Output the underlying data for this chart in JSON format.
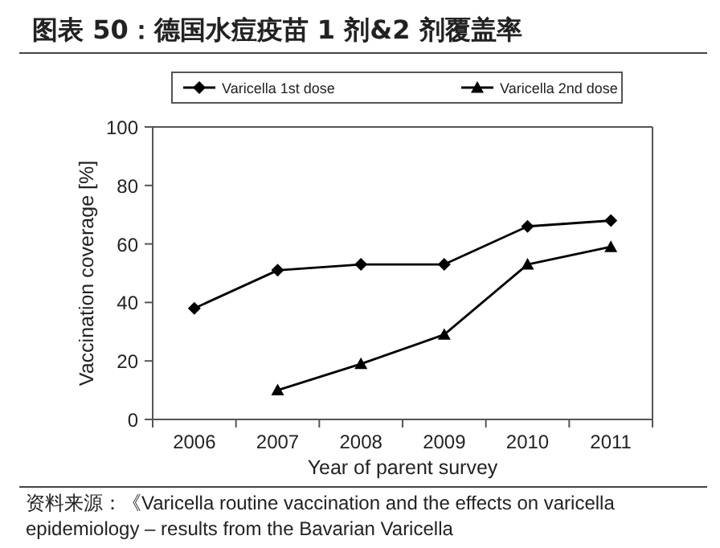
{
  "chart_data": {
    "type": "line",
    "title": "图表 50：德国水痘疫苗 1 剂&2 剂覆盖率",
    "xlabel": "Year of parent survey",
    "ylabel": "Vaccination coverage [%]",
    "categories": [
      "2006",
      "2007",
      "2008",
      "2009",
      "2010",
      "2011"
    ],
    "series": [
      {
        "name": "Varicella 1st dose",
        "color": "#000000",
        "marker": "diamond",
        "values": [
          38,
          51,
          53,
          53,
          66,
          68
        ]
      },
      {
        "name": "Varicella 2nd dose",
        "color": "#000000",
        "marker": "triangle",
        "values": [
          null,
          10,
          19,
          29,
          53,
          59
        ]
      }
    ],
    "ylim": [
      0,
      100
    ],
    "yticks": [
      0,
      20,
      40,
      60,
      80,
      100
    ],
    "legend": "top",
    "line_style": "solid",
    "annotations": [
      "资料来源：《Varicella routine vaccination and the effects on varicella epidemiology – results from the Bavarian Varicella"
    ]
  }
}
